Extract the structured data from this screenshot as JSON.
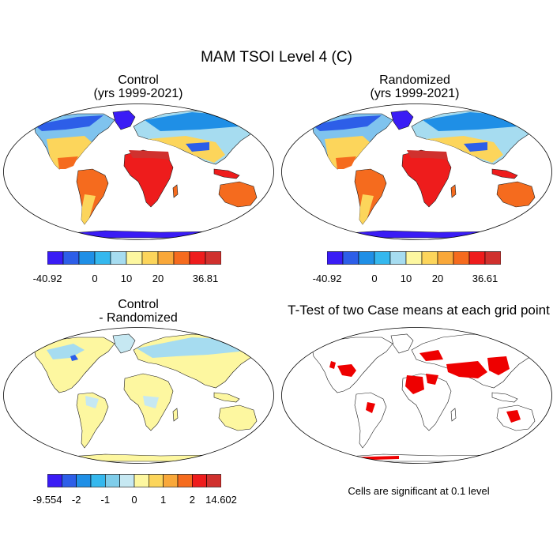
{
  "figure": {
    "title": "MAM TSOI Level 4 (C)",
    "footnote": "Cells are significant at 0.1 level"
  },
  "chart_data": [
    {
      "type": "heatmap",
      "panel": "top-left",
      "title_lines": [
        "Control",
        "(yrs 1999-2021)"
      ],
      "variable": "MAM TSOI Level 4 (C)",
      "colorbar": {
        "colors": [
          "#3a1cf5",
          "#2d5ee8",
          "#1f8fe6",
          "#35b8ee",
          "#a6dcf0",
          "#fdf7a0",
          "#fcd55b",
          "#f9a83a",
          "#f56b1e",
          "#ee1c1c",
          "#d0312e"
        ],
        "labels": [
          "-40.92",
          "0",
          "10",
          "20",
          "36.81"
        ],
        "label_slots": [
          0,
          3,
          5,
          7,
          10
        ]
      }
    },
    {
      "type": "heatmap",
      "panel": "top-right",
      "title_lines": [
        "Randomized",
        "(yrs 1999-2021)"
      ],
      "variable": "MAM TSOI Level 4 (C)",
      "colorbar": {
        "colors": [
          "#3a1cf5",
          "#2d5ee8",
          "#1f8fe6",
          "#35b8ee",
          "#a6dcf0",
          "#fdf7a0",
          "#fcd55b",
          "#f9a83a",
          "#f56b1e",
          "#ee1c1c",
          "#d0312e"
        ],
        "labels": [
          "-40.92",
          "0",
          "10",
          "20",
          "36.61"
        ],
        "label_slots": [
          0,
          3,
          5,
          7,
          10
        ]
      }
    },
    {
      "type": "heatmap",
      "panel": "bottom-left",
      "title_lines": [
        "Control",
        "- Randomized"
      ],
      "variable": "difference",
      "colorbar": {
        "colors": [
          "#3a1cf5",
          "#2d5ee8",
          "#1f8fe6",
          "#35b8ee",
          "#7fcdea",
          "#c6e8f2",
          "#fdf7a0",
          "#fcd55b",
          "#f9a83a",
          "#f56b1e",
          "#ee1c1c",
          "#d0312e"
        ],
        "labels": [
          "-9.554",
          "-2",
          "-1",
          "0",
          "1",
          "2",
          "14.602"
        ],
        "label_slots": [
          0,
          2,
          4,
          6,
          8,
          10,
          12
        ]
      }
    },
    {
      "type": "heatmap",
      "panel": "bottom-right",
      "title_lines": [
        "T-Test of two Case means at each grid point"
      ],
      "variable": "significance mask",
      "mask_color": "#ee0000"
    }
  ]
}
